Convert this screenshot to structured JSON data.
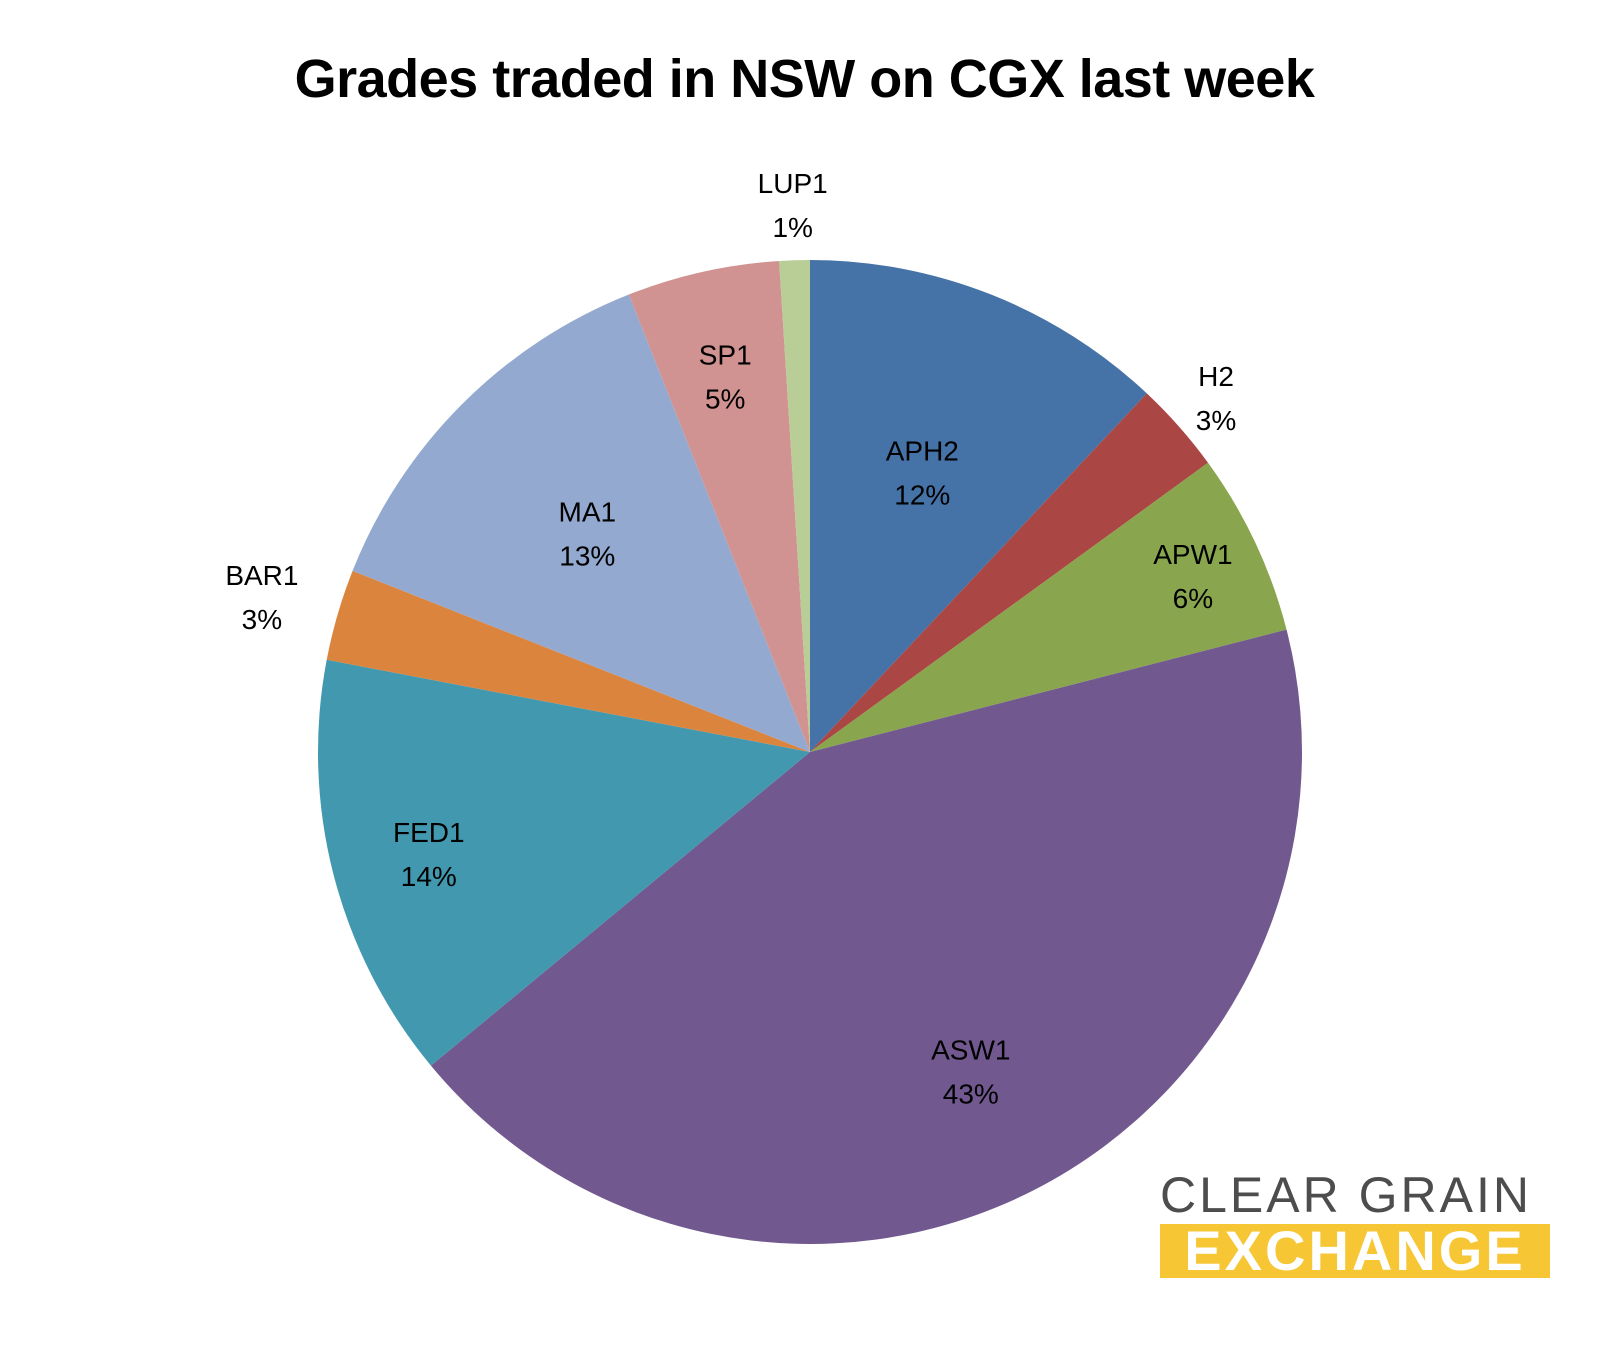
{
  "chart_data": {
    "type": "pie",
    "title": "Grades traded in NSW on CGX last week",
    "slices": [
      {
        "label": "APH2",
        "value": 12,
        "display": "12%",
        "color": "#4572a7"
      },
      {
        "label": "H2",
        "value": 3,
        "display": "3%",
        "color": "#aa4643"
      },
      {
        "label": "APW1",
        "value": 6,
        "display": "6%",
        "color": "#89a54e"
      },
      {
        "label": "ASW1",
        "value": 43,
        "display": "43%",
        "color": "#71588f"
      },
      {
        "label": "FED1",
        "value": 14,
        "display": "14%",
        "color": "#4198af"
      },
      {
        "label": "BAR1",
        "value": 3,
        "display": "3%",
        "color": "#db843d"
      },
      {
        "label": "MA1",
        "value": 13,
        "display": "13%",
        "color": "#93a9cf"
      },
      {
        "label": "SP1",
        "value": 5,
        "display": "5%",
        "color": "#d19392"
      },
      {
        "label": "LUP1",
        "value": 1,
        "display": "1%",
        "color": "#b9cd96"
      }
    ],
    "start_angle": "12 o'clock",
    "direction": "clockwise",
    "legend": "none"
  },
  "logo": {
    "line1": "CLEAR GRAIN",
    "line2": "EXCHANGE",
    "text_color": "#4d4d4d",
    "band_color": "#f6c634"
  }
}
